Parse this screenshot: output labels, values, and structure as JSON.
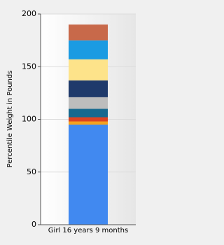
{
  "chart_data": {
    "type": "stacked-bar",
    "y_label": "Percentile Weight in Pounds",
    "categories": [
      "Girl 16 years 9 months"
    ],
    "series": [
      {
        "color": "#4189f0",
        "values": [
          95
        ]
      },
      {
        "color": "#f5a21f",
        "values": [
          3
        ]
      },
      {
        "color": "#dd4322",
        "values": [
          4
        ]
      },
      {
        "color": "#17698f",
        "values": [
          8
        ]
      },
      {
        "color": "#bdbdbd",
        "values": [
          11
        ]
      },
      {
        "color": "#1f3a6b",
        "values": [
          16
        ]
      },
      {
        "color": "#fde38a",
        "values": [
          20
        ]
      },
      {
        "color": "#1b9be2",
        "values": [
          18
        ]
      },
      {
        "color": "#c8694a",
        "values": [
          15
        ]
      }
    ],
    "ylim": [
      0,
      200
    ],
    "yticks": [
      0,
      50,
      100,
      150,
      200
    ],
    "grid": true
  }
}
